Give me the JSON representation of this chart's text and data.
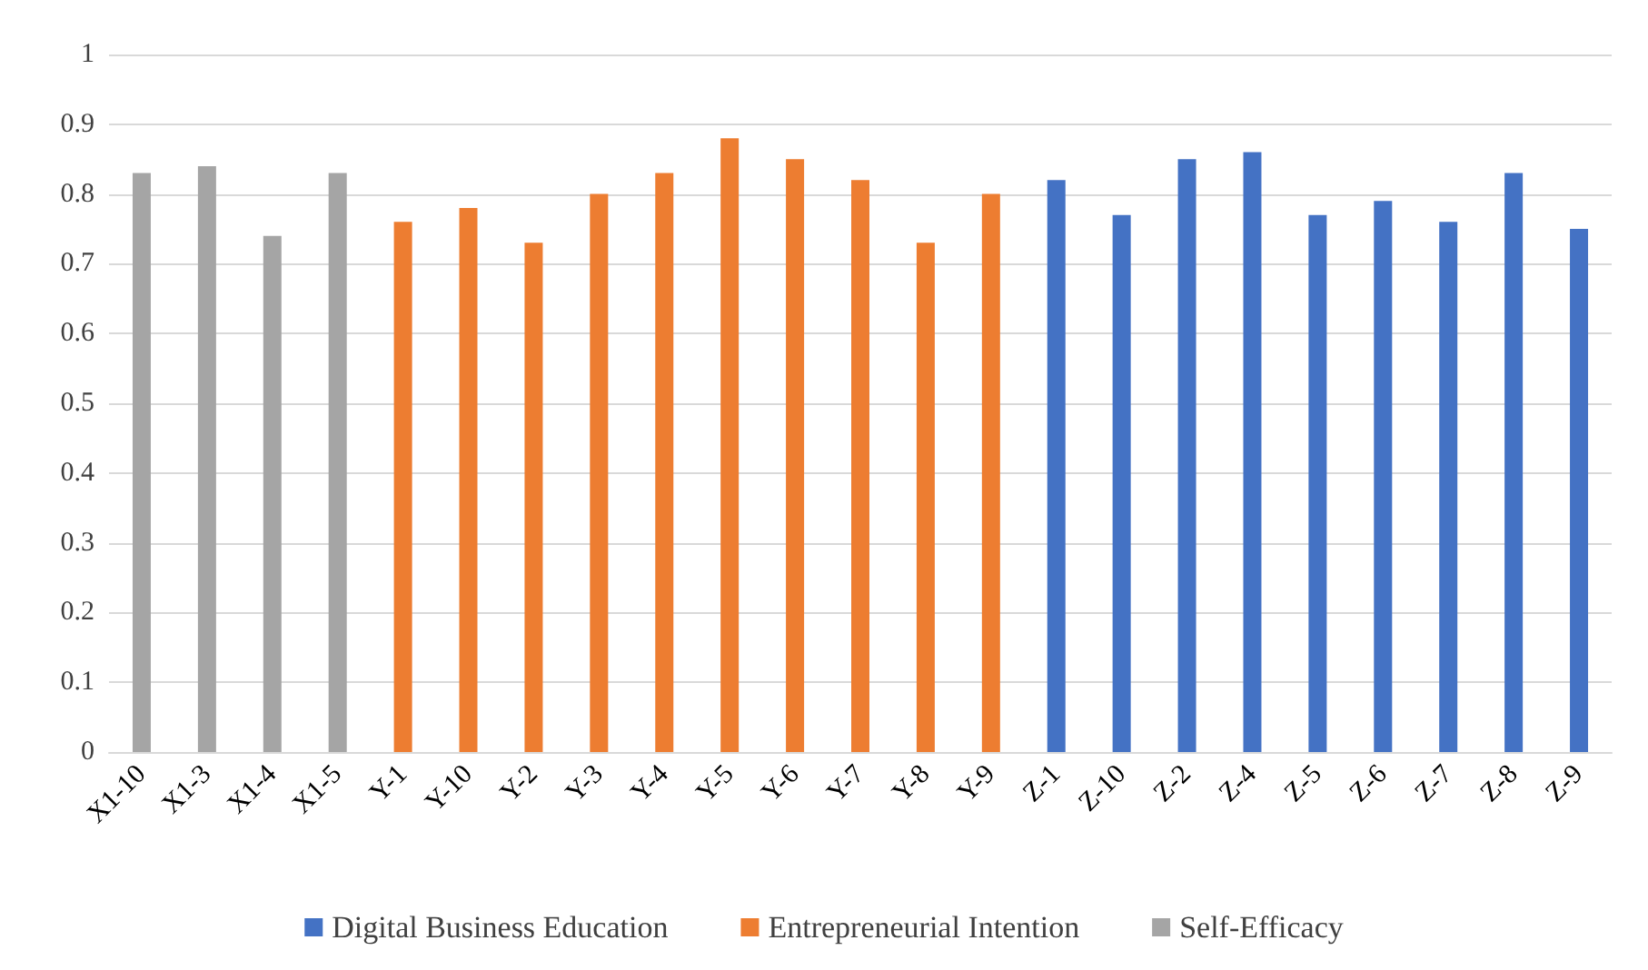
{
  "chart_data": {
    "type": "bar",
    "categories": [
      "X1-10",
      "X1-3",
      "X1-4",
      "X1-5",
      "Y-1",
      "Y-10",
      "Y-2",
      "Y-3",
      "Y-4",
      "Y-5",
      "Y-6",
      "Y-7",
      "Y-8",
      "Y-9",
      "Z-1",
      "Z-10",
      "Z-2",
      "Z-4",
      "Z-5",
      "Z-6",
      "Z-7",
      "Z-8",
      "Z-9"
    ],
    "series": [
      {
        "name": "Digital Business Education",
        "color": "#4472c4",
        "values": [
          null,
          null,
          null,
          null,
          null,
          null,
          null,
          null,
          null,
          null,
          null,
          null,
          null,
          null,
          0.82,
          0.77,
          0.85,
          0.86,
          0.77,
          0.79,
          0.76,
          0.83,
          0.75
        ]
      },
      {
        "name": "Entrepreneurial Intention",
        "color": "#ed7d31",
        "values": [
          null,
          null,
          null,
          null,
          0.76,
          0.78,
          0.73,
          0.8,
          0.83,
          0.88,
          0.85,
          0.82,
          0.73,
          0.8,
          null,
          null,
          null,
          null,
          null,
          null,
          null,
          null,
          null
        ]
      },
      {
        "name": "Self-Efficacy",
        "color": "#a5a5a5",
        "values": [
          0.83,
          0.84,
          0.74,
          0.83,
          null,
          null,
          null,
          null,
          null,
          null,
          null,
          null,
          null,
          null,
          null,
          null,
          null,
          null,
          null,
          null,
          null,
          null,
          null
        ]
      }
    ],
    "ylim": [
      0,
      1
    ],
    "yticks": [
      0,
      0.1,
      0.2,
      0.3,
      0.4,
      0.5,
      0.6,
      0.7,
      0.8,
      0.9,
      1
    ],
    "grid": "y",
    "legend": "bottom"
  }
}
